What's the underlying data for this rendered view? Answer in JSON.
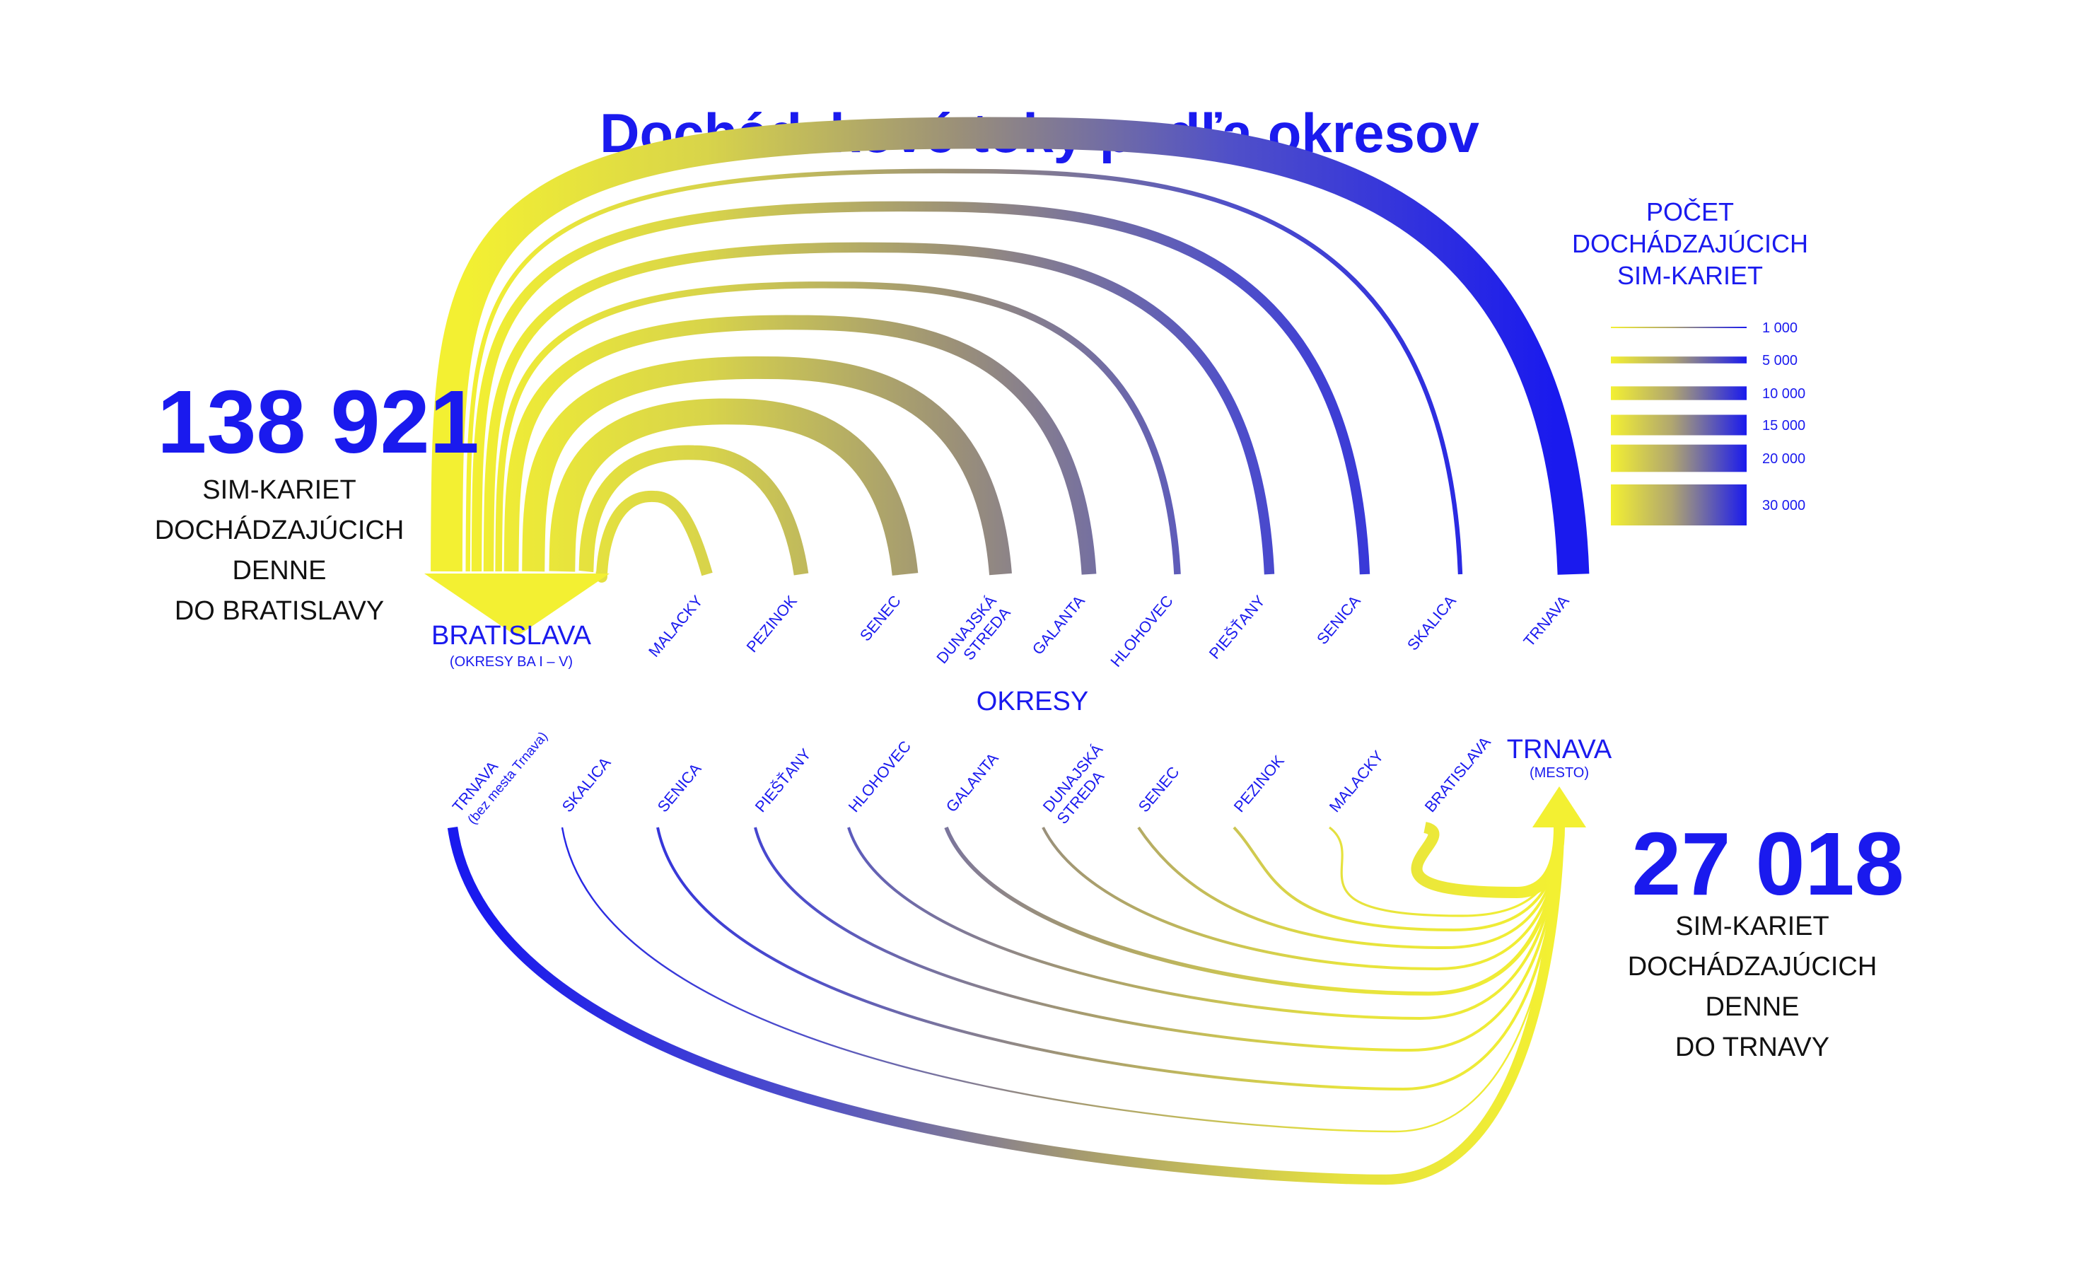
{
  "title": "Dochádzkové toky podľa okresov",
  "colors": {
    "blue": "#1a1aee",
    "yellow": "#f3f032",
    "text": "#111111",
    "background": "#ffffff"
  },
  "legend": {
    "title_lines": [
      "POČET",
      "DOCHÁDZAJÚCICH",
      "SIM-KARIET"
    ],
    "items": [
      {
        "label": "1 000",
        "value": 1000
      },
      {
        "label": "5 000",
        "value": 5000
      },
      {
        "label": "10 000",
        "value": 10000
      },
      {
        "label": "15 000",
        "value": 15000
      },
      {
        "label": "20 000",
        "value": 20000
      },
      {
        "label": "30 000",
        "value": 30000
      }
    ]
  },
  "center_label": "OKRESY",
  "bratislava": {
    "total": "138 921",
    "caption_lines": [
      "SIM-KARIET",
      "DOCHÁDZAJÚCICH",
      "DENNE",
      "DO BRATISLAVY"
    ],
    "destination": {
      "label": "BRATISLAVA",
      "sublabel": "(OKRESY BA I – V)"
    },
    "origins": [
      {
        "lines": [
          "MALACKY"
        ]
      },
      {
        "lines": [
          "PEZINOK"
        ]
      },
      {
        "lines": [
          "SENEC"
        ]
      },
      {
        "lines": [
          "DUNAJSKÁ",
          "STREDA"
        ]
      },
      {
        "lines": [
          "GALANTA"
        ]
      },
      {
        "lines": [
          "HLOHOVEC"
        ]
      },
      {
        "lines": [
          "PIEŠŤANY"
        ]
      },
      {
        "lines": [
          "SENICA"
        ]
      },
      {
        "lines": [
          "SKALICA"
        ]
      },
      {
        "lines": [
          "TRNAVA"
        ]
      }
    ]
  },
  "trnava": {
    "total": "27 018",
    "caption_lines": [
      "SIM-KARIET",
      "DOCHÁDZAJÚCICH",
      "DENNE",
      "DO TRNAVY"
    ],
    "destination": {
      "label": "TRNAVA",
      "sublabel": "(MESTO)"
    },
    "origins": [
      {
        "lines": [
          "TRNAVA",
          "(bez mesta Trnava)"
        ]
      },
      {
        "lines": [
          "SKALICA"
        ]
      },
      {
        "lines": [
          "SENICA"
        ]
      },
      {
        "lines": [
          "PIEŠŤANY"
        ]
      },
      {
        "lines": [
          "HLOHOVEC"
        ]
      },
      {
        "lines": [
          "GALANTA"
        ]
      },
      {
        "lines": [
          "DUNAJSKÁ",
          "STREDA"
        ]
      },
      {
        "lines": [
          "SENEC"
        ]
      },
      {
        "lines": [
          "PEZINOK"
        ]
      },
      {
        "lines": [
          "MALACKY"
        ]
      },
      {
        "lines": [
          "BRATISLAVA"
        ]
      }
    ]
  }
}
